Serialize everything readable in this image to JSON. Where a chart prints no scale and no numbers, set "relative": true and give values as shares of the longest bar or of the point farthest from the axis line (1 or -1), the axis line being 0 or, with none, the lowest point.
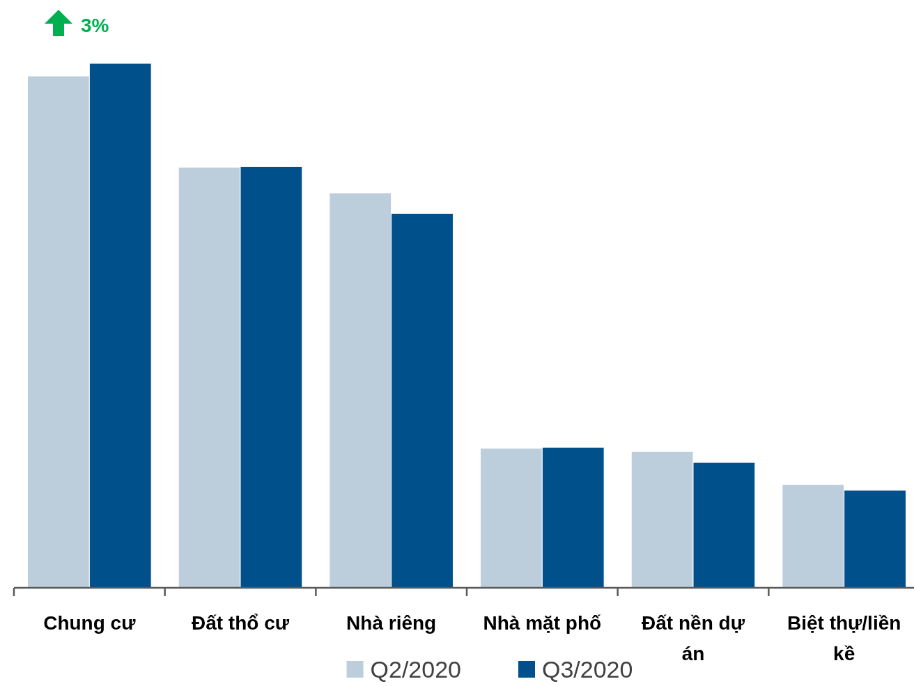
{
  "chart_data": {
    "type": "bar",
    "relative": true,
    "categories": [
      "Chung cư",
      "Đất thổ cư",
      "Nhà riêng",
      "Nhà mặt phố",
      "Đất nền dự án",
      "Biệt thự/liền kề"
    ],
    "series": [
      {
        "name": "Q2/2020",
        "color": "#bccddc",
        "values": [
          0.976,
          0.802,
          0.753,
          0.266,
          0.26,
          0.197
        ]
      },
      {
        "name": "Q3/2020",
        "color": "#00508c",
        "values": [
          1,
          0.803,
          0.714,
          0.268,
          0.239,
          0.186
        ]
      }
    ],
    "annotations": [
      "3%"
    ],
    "legend": "bottom"
  }
}
